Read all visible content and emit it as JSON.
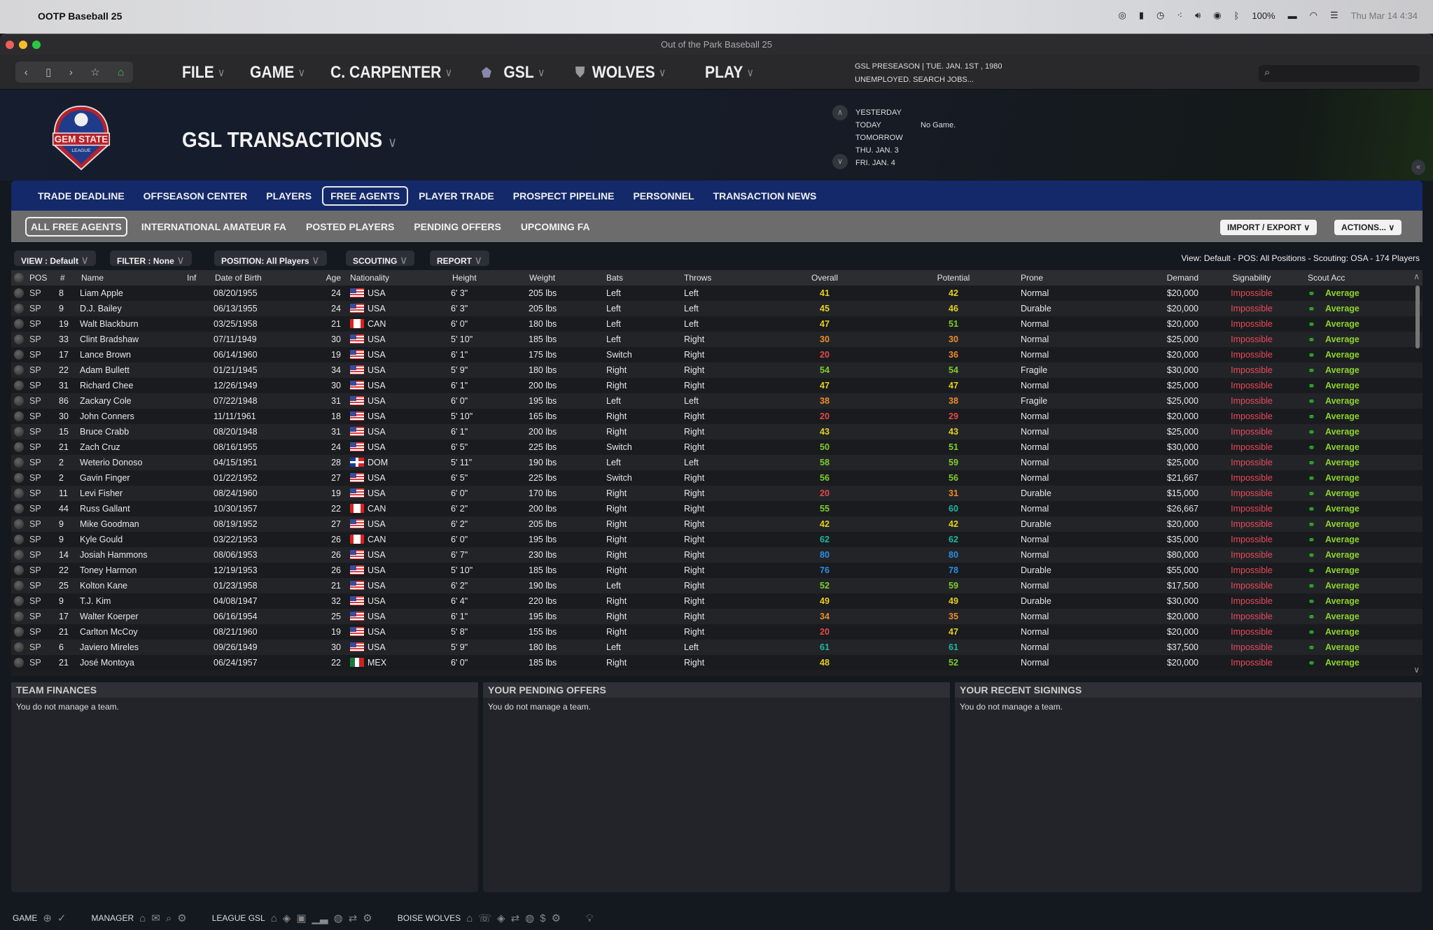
{
  "os": {
    "app_name": "OOTP Baseball 25",
    "battery": "100%",
    "clock": "Thu Mar 14  4:34"
  },
  "window": {
    "title": "Out of the Park Baseball 25"
  },
  "nav": {
    "menus": [
      {
        "label": "FILE"
      },
      {
        "label": "GAME"
      },
      {
        "label": "C. CARPENTER"
      },
      {
        "label": "GSL",
        "badge": "!"
      },
      {
        "label": "WOLVES"
      },
      {
        "label": "PLAY"
      }
    ],
    "status_line1": "GSL PRESEASON  |  TUE. JAN. 1ST , 1980",
    "status_line2": "UNEMPLOYED. SEARCH JOBS...",
    "search_placeholder": ""
  },
  "header": {
    "title": "GSL TRANSACTIONS",
    "logo_text": "GEM STATE LEAGUE",
    "dates": [
      "YESTERDAY",
      "TODAY",
      "TOMORROW",
      "THU. JAN. 3",
      "FRI. JAN. 4"
    ],
    "today_game": "No Game."
  },
  "tabs": [
    "TRADE DEADLINE",
    "OFFSEASON CENTER",
    "PLAYERS",
    "FREE AGENTS",
    "PLAYER TRADE",
    "PROSPECT PIPELINE",
    "PERSONNEL",
    "TRANSACTION NEWS"
  ],
  "active_tab": "FREE AGENTS",
  "subtabs": [
    "ALL FREE AGENTS",
    "INTERNATIONAL AMATEUR FA",
    "POSTED PLAYERS",
    "PENDING OFFERS",
    "UPCOMING FA"
  ],
  "active_subtab": "ALL FREE AGENTS",
  "actions": {
    "import_export": "IMPORT / EXPORT",
    "actions": "ACTIONS..."
  },
  "filters": {
    "view": "VIEW : Default",
    "filter": "FILTER : None",
    "position": "POSITION: All Players",
    "scouting": "SCOUTING",
    "report": "REPORT",
    "summary": "View: Default - POS: All Positions - Scouting: OSA - 174 Players"
  },
  "rating_colors": {
    "red": "#e04a4a",
    "orange": "#ee8c2a",
    "yellow": "#e6d020",
    "green": "#7ccf2a",
    "teal": "#1fb5a5",
    "blue": "#2a8ee8"
  },
  "table": {
    "columns": [
      "POS",
      "#",
      "Name",
      "Inf",
      "Date of Birth",
      "Age",
      "Nationality",
      "Height",
      "Weight",
      "Bats",
      "Throws",
      "Overall",
      "Potential",
      "Prone",
      "Demand",
      "Signability",
      "Scout Acc"
    ],
    "rows": [
      [
        "SP",
        "8",
        "Liam Apple",
        "",
        "08/20/1955",
        "24",
        "USA",
        "6' 3\"",
        "205 lbs",
        "Left",
        "Left",
        "41",
        "42",
        "Normal",
        "$20,000",
        "Impossible",
        "Average"
      ],
      [
        "SP",
        "9",
        "D.J. Bailey",
        "",
        "06/13/1955",
        "24",
        "USA",
        "6' 3\"",
        "205 lbs",
        "Left",
        "Left",
        "45",
        "46",
        "Durable",
        "$20,000",
        "Impossible",
        "Average"
      ],
      [
        "SP",
        "19",
        "Walt Blackburn",
        "",
        "03/25/1958",
        "21",
        "CAN",
        "6' 0\"",
        "180 lbs",
        "Left",
        "Left",
        "47",
        "51",
        "Normal",
        "$20,000",
        "Impossible",
        "Average"
      ],
      [
        "SP",
        "33",
        "Clint Bradshaw",
        "",
        "07/11/1949",
        "30",
        "USA",
        "5' 10\"",
        "185 lbs",
        "Left",
        "Right",
        "30",
        "30",
        "Normal",
        "$25,000",
        "Impossible",
        "Average"
      ],
      [
        "SP",
        "17",
        "Lance Brown",
        "",
        "06/14/1960",
        "19",
        "USA",
        "6' 1\"",
        "175 lbs",
        "Switch",
        "Right",
        "20",
        "36",
        "Normal",
        "$20,000",
        "Impossible",
        "Average"
      ],
      [
        "SP",
        "22",
        "Adam Bullett",
        "",
        "01/21/1945",
        "34",
        "USA",
        "5' 9\"",
        "180 lbs",
        "Right",
        "Right",
        "54",
        "54",
        "Fragile",
        "$30,000",
        "Impossible",
        "Average"
      ],
      [
        "SP",
        "31",
        "Richard Chee",
        "",
        "12/26/1949",
        "30",
        "USA",
        "6' 1\"",
        "200 lbs",
        "Right",
        "Right",
        "47",
        "47",
        "Normal",
        "$25,000",
        "Impossible",
        "Average"
      ],
      [
        "SP",
        "86",
        "Zackary Cole",
        "",
        "07/22/1948",
        "31",
        "USA",
        "6' 0\"",
        "195 lbs",
        "Left",
        "Left",
        "38",
        "38",
        "Fragile",
        "$25,000",
        "Impossible",
        "Average"
      ],
      [
        "SP",
        "30",
        "John Conners",
        "",
        "11/11/1961",
        "18",
        "USA",
        "5' 10\"",
        "165 lbs",
        "Right",
        "Right",
        "20",
        "29",
        "Normal",
        "$20,000",
        "Impossible",
        "Average"
      ],
      [
        "SP",
        "15",
        "Bruce Crabb",
        "",
        "08/20/1948",
        "31",
        "USA",
        "6' 1\"",
        "200 lbs",
        "Right",
        "Right",
        "43",
        "43",
        "Normal",
        "$25,000",
        "Impossible",
        "Average"
      ],
      [
        "SP",
        "21",
        "Zach Cruz",
        "",
        "08/16/1955",
        "24",
        "USA",
        "6' 5\"",
        "225 lbs",
        "Switch",
        "Right",
        "50",
        "51",
        "Normal",
        "$30,000",
        "Impossible",
        "Average"
      ],
      [
        "SP",
        "2",
        "Weterio Donoso",
        "",
        "04/15/1951",
        "28",
        "DOM",
        "5' 11\"",
        "190 lbs",
        "Left",
        "Left",
        "58",
        "59",
        "Normal",
        "$25,000",
        "Impossible",
        "Average"
      ],
      [
        "SP",
        "2",
        "Gavin Finger",
        "",
        "01/22/1952",
        "27",
        "USA",
        "6' 5\"",
        "225 lbs",
        "Switch",
        "Right",
        "56",
        "56",
        "Normal",
        "$21,667",
        "Impossible",
        "Average"
      ],
      [
        "SP",
        "11",
        "Levi Fisher",
        "",
        "08/24/1960",
        "19",
        "USA",
        "6' 0\"",
        "170 lbs",
        "Right",
        "Right",
        "20",
        "31",
        "Durable",
        "$15,000",
        "Impossible",
        "Average"
      ],
      [
        "SP",
        "44",
        "Russ Gallant",
        "",
        "10/30/1957",
        "22",
        "CAN",
        "6' 2\"",
        "200 lbs",
        "Right",
        "Right",
        "55",
        "60",
        "Normal",
        "$26,667",
        "Impossible",
        "Average"
      ],
      [
        "SP",
        "9",
        "Mike Goodman",
        "",
        "08/19/1952",
        "27",
        "USA",
        "6' 2\"",
        "205 lbs",
        "Right",
        "Right",
        "42",
        "42",
        "Durable",
        "$20,000",
        "Impossible",
        "Average"
      ],
      [
        "SP",
        "9",
        "Kyle Gould",
        "",
        "03/22/1953",
        "26",
        "CAN",
        "6' 0\"",
        "195 lbs",
        "Right",
        "Right",
        "62",
        "62",
        "Normal",
        "$35,000",
        "Impossible",
        "Average"
      ],
      [
        "SP",
        "14",
        "Josiah Hammons",
        "",
        "08/06/1953",
        "26",
        "USA",
        "6' 7\"",
        "230 lbs",
        "Right",
        "Right",
        "80",
        "80",
        "Normal",
        "$80,000",
        "Impossible",
        "Average"
      ],
      [
        "SP",
        "22",
        "Toney Harmon",
        "",
        "12/19/1953",
        "26",
        "USA",
        "5' 10\"",
        "185 lbs",
        "Right",
        "Right",
        "76",
        "78",
        "Durable",
        "$55,000",
        "Impossible",
        "Average"
      ],
      [
        "SP",
        "25",
        "Kolton Kane",
        "",
        "01/23/1958",
        "21",
        "USA",
        "6' 2\"",
        "190 lbs",
        "Left",
        "Right",
        "52",
        "59",
        "Normal",
        "$17,500",
        "Impossible",
        "Average"
      ],
      [
        "SP",
        "9",
        "T.J. Kim",
        "",
        "04/08/1947",
        "32",
        "USA",
        "6' 4\"",
        "220 lbs",
        "Right",
        "Right",
        "49",
        "49",
        "Durable",
        "$30,000",
        "Impossible",
        "Average"
      ],
      [
        "SP",
        "17",
        "Walter Koerper",
        "",
        "06/16/1954",
        "25",
        "USA",
        "6' 1\"",
        "195 lbs",
        "Right",
        "Right",
        "34",
        "35",
        "Normal",
        "$20,000",
        "Impossible",
        "Average"
      ],
      [
        "SP",
        "21",
        "Carlton McCoy",
        "",
        "08/21/1960",
        "19",
        "USA",
        "5' 8\"",
        "155 lbs",
        "Right",
        "Right",
        "20",
        "47",
        "Normal",
        "$20,000",
        "Impossible",
        "Average"
      ],
      [
        "SP",
        "6",
        "Javiero Mireles",
        "",
        "09/26/1949",
        "30",
        "USA",
        "5' 9\"",
        "180 lbs",
        "Left",
        "Left",
        "61",
        "61",
        "Normal",
        "$37,500",
        "Impossible",
        "Average"
      ],
      [
        "SP",
        "21",
        "José Montoya",
        "",
        "06/24/1957",
        "22",
        "MEX",
        "6' 0\"",
        "185 lbs",
        "Right",
        "Right",
        "48",
        "52",
        "Normal",
        "$20,000",
        "Impossible",
        "Average"
      ]
    ]
  },
  "panels": [
    {
      "title": "TEAM FINANCES",
      "body": "You do not manage a team."
    },
    {
      "title": "YOUR PENDING OFFERS",
      "body": "You do not manage a team."
    },
    {
      "title": "YOUR RECENT SIGNINGS",
      "body": "You do not manage a team."
    }
  ],
  "bottombar": {
    "game": "GAME",
    "manager": "MANAGER",
    "league": "LEAGUE GSL",
    "team": "BOISE WOLVES"
  }
}
